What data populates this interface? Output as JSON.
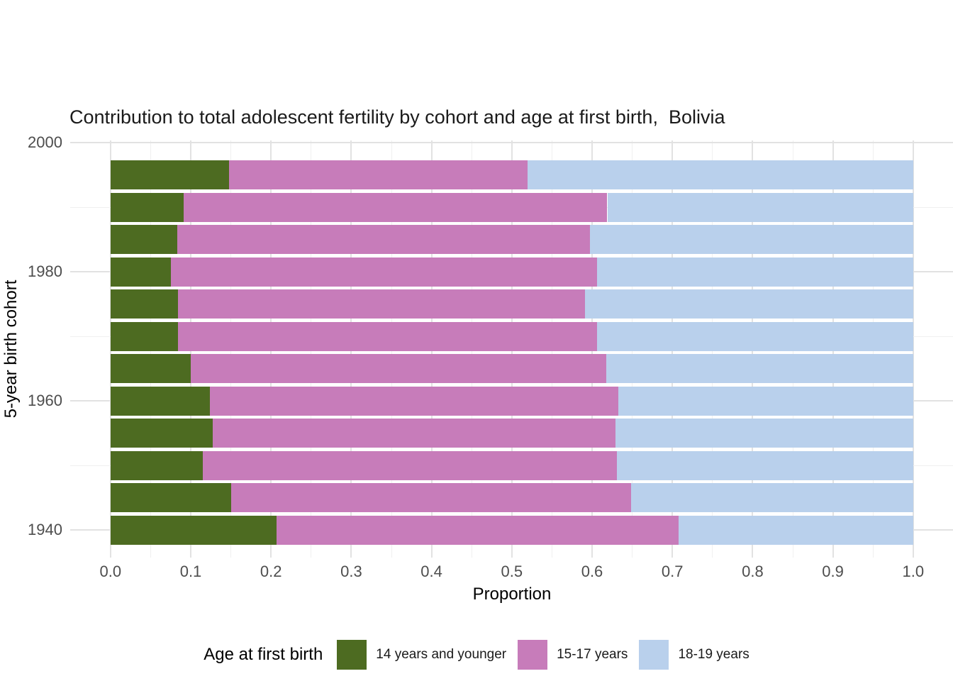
{
  "chart_data": {
    "type": "bar",
    "variant": "horizontal-stacked",
    "title": "Contribution to total adolescent fertility by cohort and age at first birth,  Bolivia",
    "xlabel": "Proportion",
    "ylabel": "5-year birth cohort",
    "legend_title": "Age at first birth",
    "legend_position": "bottom",
    "grid": "major-and-minor",
    "xlim": [
      -0.05,
      1.05
    ],
    "x_major_ticks": [
      "0.0",
      "0.1",
      "0.2",
      "0.3",
      "0.4",
      "0.5",
      "0.6",
      "0.7",
      "0.8",
      "0.9",
      "1.0"
    ],
    "x_minor_step": 0.05,
    "ylim": [
      1935.7,
      2000.3
    ],
    "y_major_ticks": [
      "1940",
      "1960",
      "1980",
      "2000"
    ],
    "y_minor_ticks": [
      "1950",
      "1970",
      "1990"
    ],
    "categories": [
      1940,
      1945,
      1950,
      1955,
      1960,
      1965,
      1970,
      1975,
      1980,
      1985,
      1990,
      1995
    ],
    "bar_width_years": 4.5,
    "series": [
      {
        "name": "14 years and younger",
        "color": "#4d6b21",
        "values": [
          0.207,
          0.15,
          0.115,
          0.127,
          0.124,
          0.1,
          0.084,
          0.084,
          0.075,
          0.083,
          0.091,
          0.148
        ]
      },
      {
        "name": "15-17 years",
        "color": "#c77cba",
        "values": [
          0.501,
          0.499,
          0.516,
          0.502,
          0.509,
          0.518,
          0.522,
          0.507,
          0.531,
          0.514,
          0.528,
          0.372
        ]
      },
      {
        "name": "18-19 years",
        "color": "#b9d0ec",
        "values": [
          0.292,
          0.351,
          0.369,
          0.371,
          0.367,
          0.382,
          0.394,
          0.409,
          0.394,
          0.403,
          0.381,
          0.48
        ]
      }
    ],
    "colors": {
      "grid_major": "#e2e2e2",
      "grid_minor": "#f0f0f0",
      "tick_label": "#4d4d4d",
      "text": "#000000"
    }
  }
}
